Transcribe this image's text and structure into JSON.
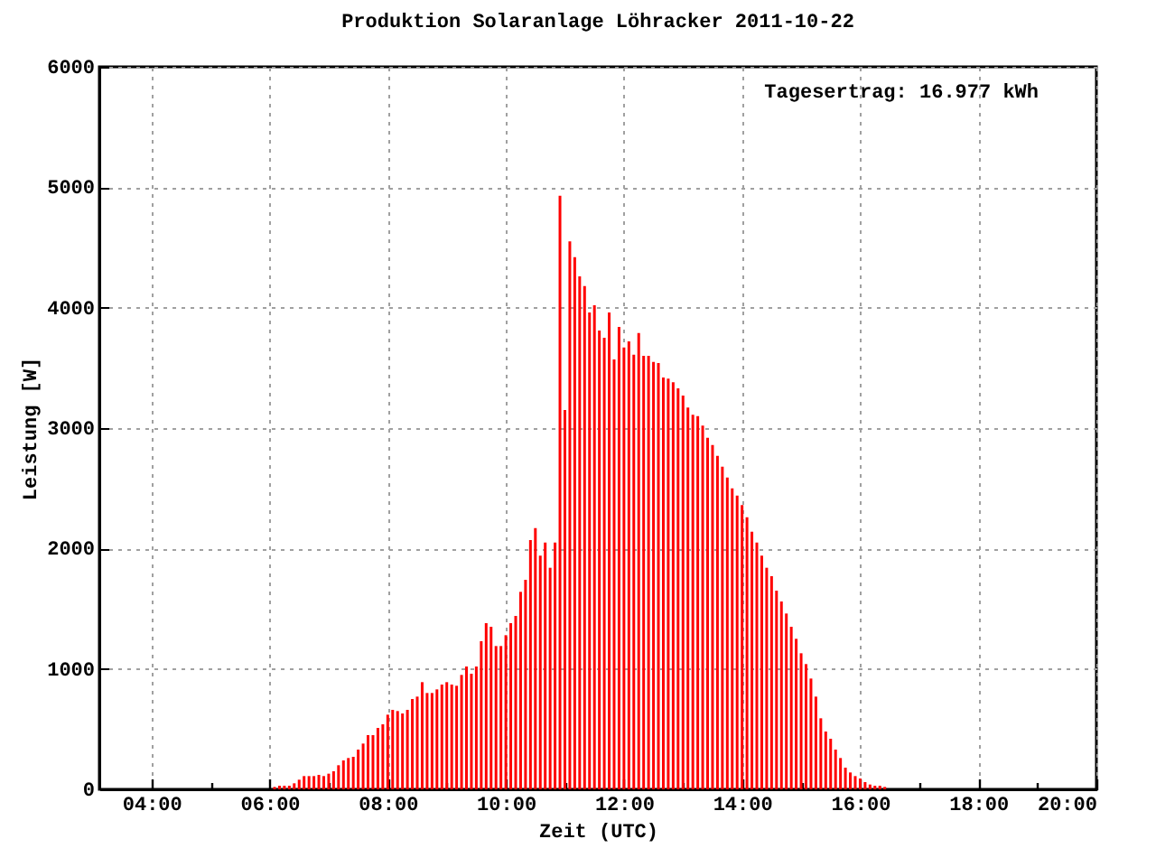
{
  "chart_data": {
    "type": "bar",
    "title": "Produktion Solaranlage Löhracker 2011-10-22",
    "xlabel": "Zeit (UTC)",
    "ylabel": "Leistung [W]",
    "annotations": [
      "Tagesertrag: 16.977 kWh"
    ],
    "x": [
      "2011-10-22T06:05",
      "2011-10-22T06:10",
      "2011-10-22T06:15",
      "2011-10-22T06:20",
      "2011-10-22T06:25",
      "2011-10-22T06:30",
      "2011-10-22T06:35",
      "2011-10-22T06:40",
      "2011-10-22T06:45",
      "2011-10-22T06:50",
      "2011-10-22T06:55",
      "2011-10-22T07:00",
      "2011-10-22T07:05",
      "2011-10-22T07:10",
      "2011-10-22T07:15",
      "2011-10-22T07:20",
      "2011-10-22T07:25",
      "2011-10-22T07:30",
      "2011-10-22T07:35",
      "2011-10-22T07:40",
      "2011-10-22T07:45",
      "2011-10-22T07:50",
      "2011-10-22T07:55",
      "2011-10-22T08:00",
      "2011-10-22T08:05",
      "2011-10-22T08:10",
      "2011-10-22T08:15",
      "2011-10-22T08:20",
      "2011-10-22T08:25",
      "2011-10-22T08:30",
      "2011-10-22T08:35",
      "2011-10-22T08:40",
      "2011-10-22T08:45",
      "2011-10-22T08:50",
      "2011-10-22T08:55",
      "2011-10-22T09:00",
      "2011-10-22T09:05",
      "2011-10-22T09:10",
      "2011-10-22T09:15",
      "2011-10-22T09:20",
      "2011-10-22T09:25",
      "2011-10-22T09:30",
      "2011-10-22T09:35",
      "2011-10-22T09:40",
      "2011-10-22T09:45",
      "2011-10-22T09:50",
      "2011-10-22T09:55",
      "2011-10-22T10:00",
      "2011-10-22T10:05",
      "2011-10-22T10:10",
      "2011-10-22T10:15",
      "2011-10-22T10:20",
      "2011-10-22T10:25",
      "2011-10-22T10:30",
      "2011-10-22T10:35",
      "2011-10-22T10:40",
      "2011-10-22T10:45",
      "2011-10-22T10:50",
      "2011-10-22T10:55",
      "2011-10-22T11:00",
      "2011-10-22T11:05",
      "2011-10-22T11:10",
      "2011-10-22T11:15",
      "2011-10-22T11:20",
      "2011-10-22T11:25",
      "2011-10-22T11:30",
      "2011-10-22T11:35",
      "2011-10-22T11:40",
      "2011-10-22T11:45",
      "2011-10-22T11:50",
      "2011-10-22T11:55",
      "2011-10-22T12:00",
      "2011-10-22T12:05",
      "2011-10-22T12:10",
      "2011-10-22T12:15",
      "2011-10-22T12:20",
      "2011-10-22T12:25",
      "2011-10-22T12:30",
      "2011-10-22T12:35",
      "2011-10-22T12:40",
      "2011-10-22T12:45",
      "2011-10-22T12:50",
      "2011-10-22T12:55",
      "2011-10-22T13:00",
      "2011-10-22T13:05",
      "2011-10-22T13:10",
      "2011-10-22T13:15",
      "2011-10-22T13:20",
      "2011-10-22T13:25",
      "2011-10-22T13:30",
      "2011-10-22T13:35",
      "2011-10-22T13:40",
      "2011-10-22T13:45",
      "2011-10-22T13:50",
      "2011-10-22T13:55",
      "2011-10-22T14:00",
      "2011-10-22T14:05",
      "2011-10-22T14:10",
      "2011-10-22T14:15",
      "2011-10-22T14:20",
      "2011-10-22T14:25",
      "2011-10-22T14:30",
      "2011-10-22T14:35",
      "2011-10-22T14:40",
      "2011-10-22T14:45",
      "2011-10-22T14:50",
      "2011-10-22T14:55",
      "2011-10-22T15:00",
      "2011-10-22T15:05",
      "2011-10-22T15:10",
      "2011-10-22T15:15",
      "2011-10-22T15:20",
      "2011-10-22T15:25",
      "2011-10-22T15:30",
      "2011-10-22T15:35",
      "2011-10-22T15:40",
      "2011-10-22T15:45",
      "2011-10-22T15:50",
      "2011-10-22T15:55",
      "2011-10-22T16:00",
      "2011-10-22T16:05",
      "2011-10-22T16:10",
      "2011-10-22T16:15",
      "2011-10-22T16:20",
      "2011-10-22T16:25"
    ],
    "values": [
      20,
      30,
      30,
      30,
      50,
      80,
      110,
      110,
      110,
      120,
      110,
      130,
      150,
      200,
      240,
      260,
      270,
      330,
      380,
      450,
      450,
      510,
      540,
      620,
      660,
      650,
      630,
      660,
      750,
      770,
      890,
      800,
      800,
      830,
      870,
      890,
      870,
      860,
      950,
      1020,
      960,
      1020,
      1230,
      1380,
      1350,
      1190,
      1190,
      1280,
      1380,
      1440,
      1640,
      1740,
      2070,
      2170,
      1940,
      2050,
      1840,
      2050,
      4930,
      3150,
      4550,
      4420,
      4260,
      4180,
      3960,
      4020,
      3810,
      3750,
      3960,
      3570,
      3840,
      3670,
      3720,
      3610,
      3790,
      3600,
      3600,
      3550,
      3540,
      3420,
      3410,
      3380,
      3330,
      3270,
      3170,
      3110,
      3100,
      3020,
      2920,
      2860,
      2770,
      2680,
      2590,
      2500,
      2440,
      2360,
      2260,
      2140,
      2050,
      1940,
      1840,
      1770,
      1650,
      1560,
      1460,
      1350,
      1250,
      1130,
      1040,
      920,
      770,
      590,
      480,
      420,
      330,
      260,
      180,
      140,
      110,
      90,
      60,
      40,
      30,
      30,
      20
    ],
    "color": "#ff0000",
    "xlim": [
      "2011-10-22T03:07",
      "2011-10-22T20:00"
    ],
    "xticks": [
      {
        "value": "2011-10-22T04:00",
        "label": "04:00"
      },
      {
        "value": "2011-10-22T05:00",
        "label": null
      },
      {
        "value": "2011-10-22T06:00",
        "label": "06:00"
      },
      {
        "value": "2011-10-22T07:00",
        "label": null
      },
      {
        "value": "2011-10-22T08:00",
        "label": "08:00"
      },
      {
        "value": "2011-10-22T09:00",
        "label": null
      },
      {
        "value": "2011-10-22T10:00",
        "label": "10:00"
      },
      {
        "value": "2011-10-22T11:00",
        "label": null
      },
      {
        "value": "2011-10-22T12:00",
        "label": "12:00"
      },
      {
        "value": "2011-10-22T13:00",
        "label": null
      },
      {
        "value": "2011-10-22T14:00",
        "label": "14:00"
      },
      {
        "value": "2011-10-22T15:00",
        "label": null
      },
      {
        "value": "2011-10-22T16:00",
        "label": "16:00"
      },
      {
        "value": "2011-10-22T17:00",
        "label": null
      },
      {
        "value": "2011-10-22T18:00",
        "label": "18:00"
      },
      {
        "value": "2011-10-22T19:00",
        "label": null
      },
      {
        "value": "2011-10-22T20:00",
        "label": "20:00"
      }
    ],
    "ylim": [
      0,
      6000
    ],
    "yticks": [
      0,
      1000,
      2000,
      3000,
      4000,
      5000,
      6000
    ],
    "grid": true
  }
}
